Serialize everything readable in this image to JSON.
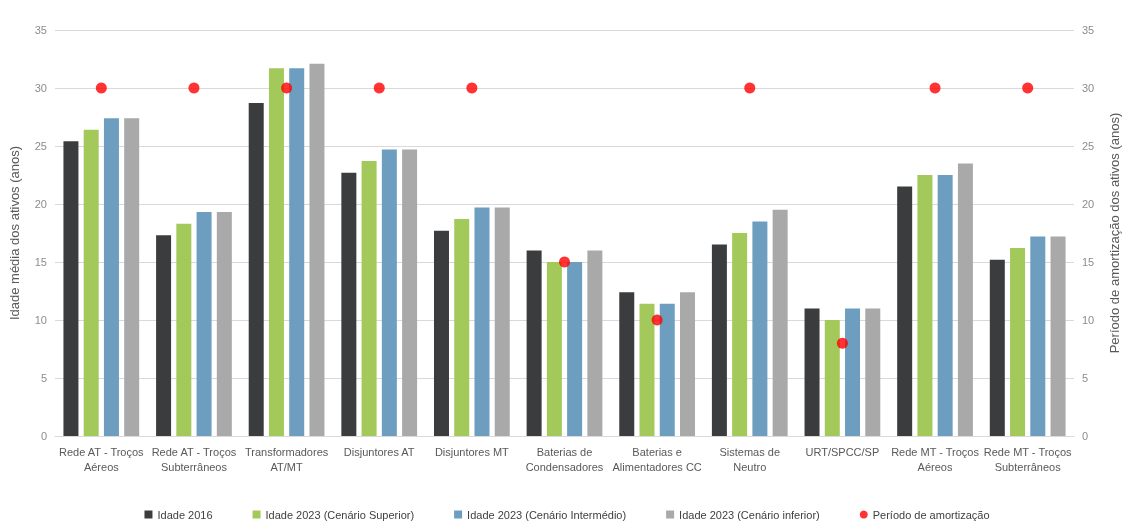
{
  "chart_data": {
    "type": "bar",
    "xlabel": null,
    "ylabel": "Idade média dos ativos (anos)",
    "y2label": "Período de amortização dos ativos (anos)",
    "categories": [
      "Rede AT - Troços\nAéreos",
      "Rede AT - Troços\nSubterrâneos",
      "Transformadores\nAT/MT",
      "Disjuntores AT",
      "Disjuntores MT",
      "Baterias de\nCondensadores",
      "Baterias e\nAlimentadores CC",
      "Sistemas de\nNeutro",
      "URT/SPCC/SP",
      "Rede MT - Troços\nAéreos",
      "Rede MT - Troços\nSubterrâneos"
    ],
    "series": [
      {
        "name": "Idade 2016",
        "color": "#3a3c3e",
        "values": [
          25.4,
          17.3,
          28.7,
          22.7,
          17.7,
          16,
          12.4,
          16.5,
          11,
          21.5,
          15.2
        ]
      },
      {
        "name": "Idade 2023 (Cenário Superior)",
        "color": "#a2c95a",
        "values": [
          26.4,
          18.3,
          31.7,
          23.7,
          18.7,
          15,
          11.4,
          17.5,
          10,
          22.5,
          16.2
        ]
      },
      {
        "name": "Idade 2023 (Cenário Intermédio)",
        "color": "#6d9ebf",
        "values": [
          27.4,
          19.3,
          31.7,
          24.7,
          19.7,
          15,
          11.4,
          18.5,
          11,
          22.5,
          17.2
        ]
      },
      {
        "name": "Idade 2023 (Cenário inferior)",
        "color": "#a9a9a9",
        "values": [
          27.4,
          19.3,
          32.1,
          24.7,
          19.7,
          16,
          12.4,
          19.5,
          11,
          23.5,
          17.2
        ]
      },
      {
        "name": "Período de amortização",
        "type": "scatter",
        "axis": "y2",
        "color": "#ff0000",
        "values": [
          30,
          30,
          30,
          30,
          30,
          15,
          10,
          30,
          8,
          30,
          30
        ]
      }
    ],
    "ylim": [
      0,
      35
    ],
    "yticks": [
      0,
      5,
      10,
      15,
      20,
      25,
      30,
      35
    ],
    "y2lim": [
      0,
      35
    ],
    "y2ticks": [
      0,
      5,
      10,
      15,
      20,
      25,
      30,
      35
    ],
    "grid": "y",
    "legend": "bottom",
    "marker": "circle"
  }
}
